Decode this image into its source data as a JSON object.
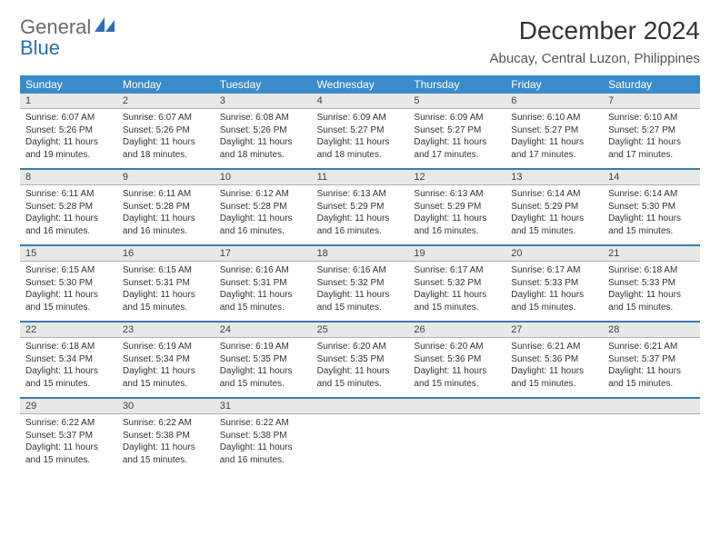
{
  "brand": {
    "general": "General",
    "blue": "Blue"
  },
  "title": "December 2024",
  "location": "Abucay, Central Luzon, Philippines",
  "colors": {
    "header_bg": "#3a8bca",
    "header_text": "#ffffff",
    "daynum_bg": "#e8e8e8",
    "row_divider": "#3a7ab0",
    "text": "#333333",
    "logo_gray": "#6a6a6a",
    "logo_blue": "#2d6fb5"
  },
  "days_of_week": [
    "Sunday",
    "Monday",
    "Tuesday",
    "Wednesday",
    "Thursday",
    "Friday",
    "Saturday"
  ],
  "weeks": [
    [
      {
        "n": "1",
        "sr": "6:07 AM",
        "ss": "5:26 PM",
        "dl": "11 hours and 19 minutes."
      },
      {
        "n": "2",
        "sr": "6:07 AM",
        "ss": "5:26 PM",
        "dl": "11 hours and 18 minutes."
      },
      {
        "n": "3",
        "sr": "6:08 AM",
        "ss": "5:26 PM",
        "dl": "11 hours and 18 minutes."
      },
      {
        "n": "4",
        "sr": "6:09 AM",
        "ss": "5:27 PM",
        "dl": "11 hours and 18 minutes."
      },
      {
        "n": "5",
        "sr": "6:09 AM",
        "ss": "5:27 PM",
        "dl": "11 hours and 17 minutes."
      },
      {
        "n": "6",
        "sr": "6:10 AM",
        "ss": "5:27 PM",
        "dl": "11 hours and 17 minutes."
      },
      {
        "n": "7",
        "sr": "6:10 AM",
        "ss": "5:27 PM",
        "dl": "11 hours and 17 minutes."
      }
    ],
    [
      {
        "n": "8",
        "sr": "6:11 AM",
        "ss": "5:28 PM",
        "dl": "11 hours and 16 minutes."
      },
      {
        "n": "9",
        "sr": "6:11 AM",
        "ss": "5:28 PM",
        "dl": "11 hours and 16 minutes."
      },
      {
        "n": "10",
        "sr": "6:12 AM",
        "ss": "5:28 PM",
        "dl": "11 hours and 16 minutes."
      },
      {
        "n": "11",
        "sr": "6:13 AM",
        "ss": "5:29 PM",
        "dl": "11 hours and 16 minutes."
      },
      {
        "n": "12",
        "sr": "6:13 AM",
        "ss": "5:29 PM",
        "dl": "11 hours and 16 minutes."
      },
      {
        "n": "13",
        "sr": "6:14 AM",
        "ss": "5:29 PM",
        "dl": "11 hours and 15 minutes."
      },
      {
        "n": "14",
        "sr": "6:14 AM",
        "ss": "5:30 PM",
        "dl": "11 hours and 15 minutes."
      }
    ],
    [
      {
        "n": "15",
        "sr": "6:15 AM",
        "ss": "5:30 PM",
        "dl": "11 hours and 15 minutes."
      },
      {
        "n": "16",
        "sr": "6:15 AM",
        "ss": "5:31 PM",
        "dl": "11 hours and 15 minutes."
      },
      {
        "n": "17",
        "sr": "6:16 AM",
        "ss": "5:31 PM",
        "dl": "11 hours and 15 minutes."
      },
      {
        "n": "18",
        "sr": "6:16 AM",
        "ss": "5:32 PM",
        "dl": "11 hours and 15 minutes."
      },
      {
        "n": "19",
        "sr": "6:17 AM",
        "ss": "5:32 PM",
        "dl": "11 hours and 15 minutes."
      },
      {
        "n": "20",
        "sr": "6:17 AM",
        "ss": "5:33 PM",
        "dl": "11 hours and 15 minutes."
      },
      {
        "n": "21",
        "sr": "6:18 AM",
        "ss": "5:33 PM",
        "dl": "11 hours and 15 minutes."
      }
    ],
    [
      {
        "n": "22",
        "sr": "6:18 AM",
        "ss": "5:34 PM",
        "dl": "11 hours and 15 minutes."
      },
      {
        "n": "23",
        "sr": "6:19 AM",
        "ss": "5:34 PM",
        "dl": "11 hours and 15 minutes."
      },
      {
        "n": "24",
        "sr": "6:19 AM",
        "ss": "5:35 PM",
        "dl": "11 hours and 15 minutes."
      },
      {
        "n": "25",
        "sr": "6:20 AM",
        "ss": "5:35 PM",
        "dl": "11 hours and 15 minutes."
      },
      {
        "n": "26",
        "sr": "6:20 AM",
        "ss": "5:36 PM",
        "dl": "11 hours and 15 minutes."
      },
      {
        "n": "27",
        "sr": "6:21 AM",
        "ss": "5:36 PM",
        "dl": "11 hours and 15 minutes."
      },
      {
        "n": "28",
        "sr": "6:21 AM",
        "ss": "5:37 PM",
        "dl": "11 hours and 15 minutes."
      }
    ],
    [
      {
        "n": "29",
        "sr": "6:22 AM",
        "ss": "5:37 PM",
        "dl": "11 hours and 15 minutes."
      },
      {
        "n": "30",
        "sr": "6:22 AM",
        "ss": "5:38 PM",
        "dl": "11 hours and 15 minutes."
      },
      {
        "n": "31",
        "sr": "6:22 AM",
        "ss": "5:38 PM",
        "dl": "11 hours and 16 minutes."
      },
      null,
      null,
      null,
      null
    ]
  ],
  "labels": {
    "sunrise": "Sunrise:",
    "sunset": "Sunset:",
    "daylight": "Daylight:"
  }
}
